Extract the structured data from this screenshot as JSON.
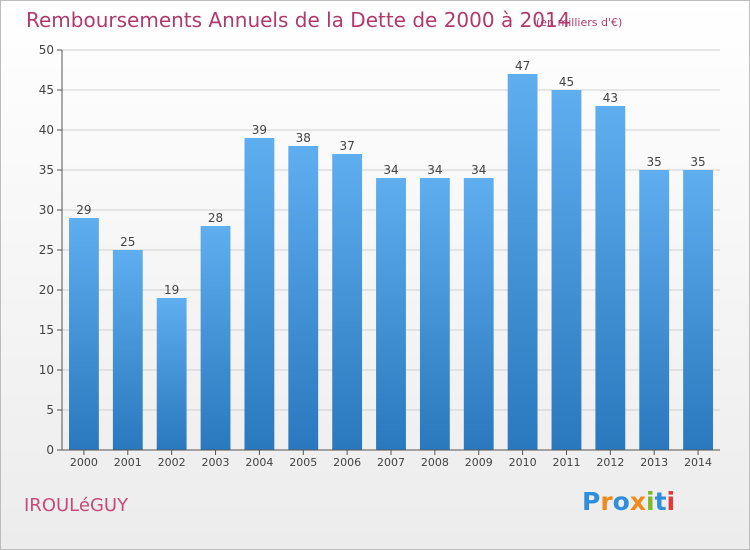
{
  "title": "Remboursements Annuels de la Dette de 2000 à 2014",
  "subtitle": "(en milliers d'€)",
  "town": "IROULéGUY",
  "logo_text": "Proxiti",
  "colors": {
    "title": "#b03a6e",
    "bar_light": "#5eaef0",
    "bar_dark": "#2a78bd",
    "grid": "#d0d0d0",
    "axis": "#555555"
  },
  "chart_data": {
    "type": "bar",
    "title": "Remboursements Annuels de la Dette de 2000 à 2014",
    "categories": [
      "2000",
      "2001",
      "2002",
      "2003",
      "2004",
      "2005",
      "2006",
      "2007",
      "2008",
      "2009",
      "2010",
      "2011",
      "2012",
      "2013",
      "2014"
    ],
    "values": [
      29,
      25,
      19,
      28,
      39,
      38,
      37,
      34,
      34,
      34,
      47,
      45,
      43,
      35,
      35
    ],
    "data_labels": [
      "29",
      "25",
      "19",
      "28",
      "39",
      "38",
      "37",
      "34",
      "34",
      "34",
      "47",
      "45",
      "43",
      "35",
      "35"
    ],
    "ylim": [
      0,
      50
    ],
    "yticks": [
      0,
      5,
      10,
      15,
      20,
      25,
      30,
      35,
      40,
      45,
      50
    ],
    "ytick_labels": [
      "0",
      "5",
      "10",
      "15",
      "20",
      "25",
      "30",
      "35",
      "40",
      "45",
      "50"
    ],
    "xlabel": "",
    "ylabel": "",
    "grid": true,
    "legend": "none"
  }
}
